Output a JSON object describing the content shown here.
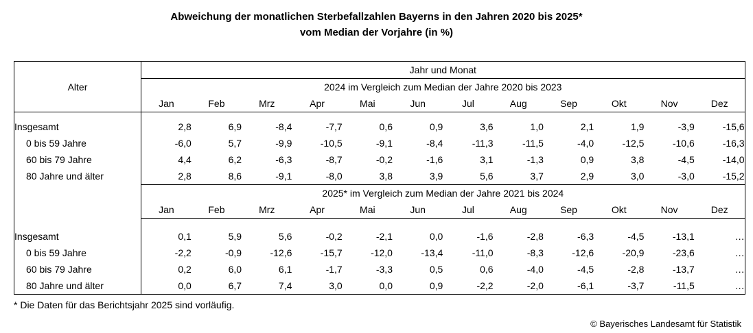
{
  "title": {
    "line1": "Abweichung der monatlichen Sterbefallzahlen Bayerns in den Jahren 2020 bis 2025*",
    "line2": "vom Median der Vorjahre (in %)"
  },
  "table": {
    "corner_header": "Alter",
    "top_header": "Jahr und Monat",
    "months": [
      "Jan",
      "Feb",
      "Mrz",
      "Apr",
      "Mai",
      "Jun",
      "Jul",
      "Aug",
      "Sep",
      "Okt",
      "Nov",
      "Dez"
    ],
    "sections": [
      {
        "header": "2024 im Vergleich zum Median der Jahre 2020 bis 2023",
        "rows": [
          {
            "label": "Insgesamt",
            "indent": false,
            "values": [
              "2,8",
              "6,9",
              "-8,4",
              "-7,7",
              "0,6",
              "0,9",
              "3,6",
              "1,0",
              "2,1",
              "1,9",
              "-3,9",
              "-15,6"
            ]
          },
          {
            "label": "0 bis 59 Jahre",
            "indent": true,
            "values": [
              "-6,0",
              "5,7",
              "-9,9",
              "-10,5",
              "-9,1",
              "-8,4",
              "-11,3",
              "-11,5",
              "-4,0",
              "-12,5",
              "-10,6",
              "-16,3"
            ]
          },
          {
            "label": "60 bis 79 Jahre",
            "indent": true,
            "values": [
              "4,4",
              "6,2",
              "-6,3",
              "-8,7",
              "-0,2",
              "-1,6",
              "3,1",
              "-1,3",
              "0,9",
              "3,8",
              "-4,5",
              "-14,0"
            ]
          },
          {
            "label": "80 Jahre und älter",
            "indent": true,
            "values": [
              "2,8",
              "8,6",
              "-9,1",
              "-8,0",
              "3,8",
              "3,9",
              "5,6",
              "3,7",
              "2,9",
              "3,0",
              "-3,0",
              "-15,2"
            ]
          }
        ]
      },
      {
        "header": "2025* im Vergleich zum Median der Jahre 2021 bis 2024",
        "rows": [
          {
            "label": "Insgesamt",
            "indent": false,
            "values": [
              "0,1",
              "5,9",
              "5,6",
              "-0,2",
              "-2,1",
              "0,0",
              "-1,6",
              "-2,8",
              "-6,3",
              "-4,5",
              "-13,1",
              "…"
            ]
          },
          {
            "label": "0 bis 59 Jahre",
            "indent": true,
            "values": [
              "-2,2",
              "-0,9",
              "-12,6",
              "-15,7",
              "-12,0",
              "-13,4",
              "-11,0",
              "-8,3",
              "-12,6",
              "-20,9",
              "-23,6",
              "…"
            ]
          },
          {
            "label": "60 bis 79 Jahre",
            "indent": true,
            "values": [
              "0,2",
              "6,0",
              "6,1",
              "-1,7",
              "-3,3",
              "0,5",
              "0,6",
              "-4,0",
              "-4,5",
              "-2,8",
              "-13,7",
              "…"
            ]
          },
          {
            "label": "80 Jahre und älter",
            "indent": true,
            "values": [
              "0,0",
              "6,7",
              "7,4",
              "3,0",
              "0,0",
              "0,9",
              "-2,2",
              "-2,0",
              "-6,1",
              "-3,7",
              "-11,5",
              "…"
            ]
          }
        ]
      }
    ]
  },
  "footnote": "* Die Daten für das Berichtsjahr 2025 sind vorläufig.",
  "copyright": "© Bayerisches Landesamt für Statistik",
  "colors": {
    "text": "#000000",
    "background": "#ffffff",
    "border": "#000000"
  }
}
